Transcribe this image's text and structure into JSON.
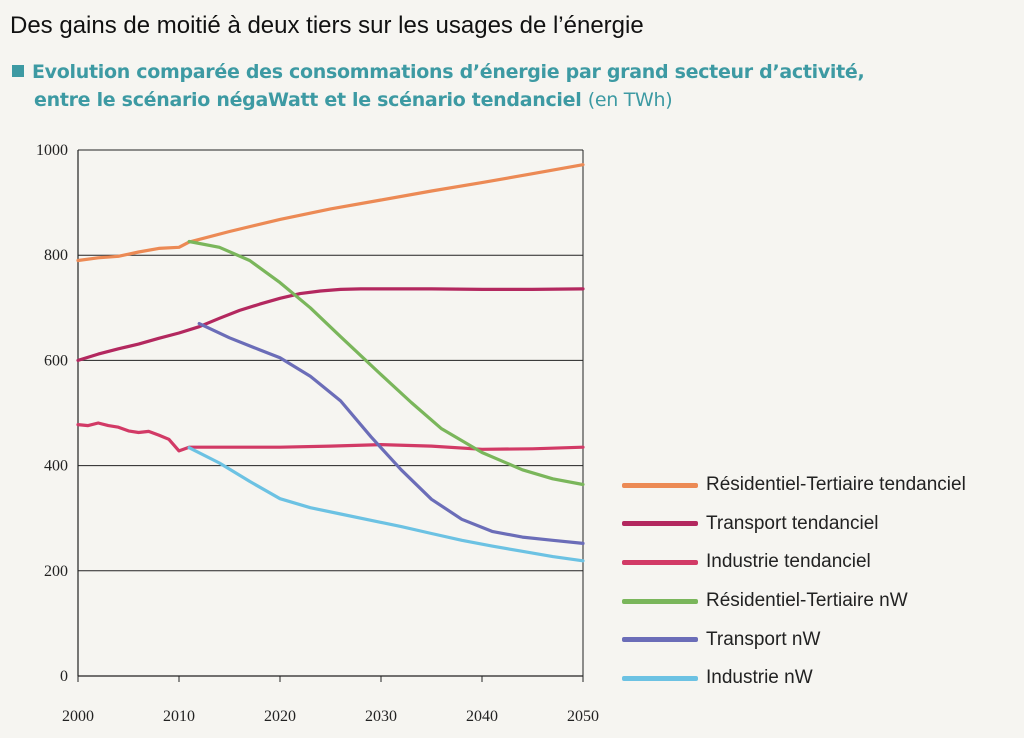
{
  "title": "Des gains de moitié à deux tiers sur les usages de l’énergie",
  "subtitle": {
    "line1": "Evolution comparée des consommations d’énergie par grand secteur d’activité,",
    "line2": "entre le scénario négaWatt et le scénario tendanciel",
    "unit": "(en TWh)"
  },
  "chart_data": {
    "type": "line",
    "title": "Des gains de moitié à deux tiers sur les usages de l’énergie",
    "subtitle": "Evolution comparée des consommations d’énergie par grand secteur d’activité, entre le scénario négaWatt et le scénario tendanciel (en TWh)",
    "xlabel": "",
    "ylabel": "",
    "xlim": [
      2000,
      2050
    ],
    "ylim": [
      0,
      1000
    ],
    "x_ticks": [
      2000,
      2010,
      2020,
      2030,
      2040,
      2050
    ],
    "y_ticks": [
      0,
      200,
      400,
      600,
      800,
      1000
    ],
    "grid": "horizontal",
    "legend_position": "bottom-right",
    "series": [
      {
        "name": "Résidentiel-Tertiaire tendanciel",
        "color": "#ec8a55",
        "points": [
          [
            2000,
            790
          ],
          [
            2002,
            795
          ],
          [
            2004,
            798
          ],
          [
            2006,
            806
          ],
          [
            2008,
            813
          ],
          [
            2010,
            815
          ],
          [
            2011,
            825
          ],
          [
            2015,
            845
          ],
          [
            2020,
            868
          ],
          [
            2025,
            888
          ],
          [
            2030,
            905
          ],
          [
            2035,
            922
          ],
          [
            2040,
            938
          ],
          [
            2045,
            955
          ],
          [
            2050,
            972
          ]
        ]
      },
      {
        "name": "Transport tendanciel",
        "color": "#b3285f",
        "points": [
          [
            2000,
            600
          ],
          [
            2002,
            612
          ],
          [
            2004,
            622
          ],
          [
            2006,
            631
          ],
          [
            2008,
            642
          ],
          [
            2010,
            652
          ],
          [
            2012,
            664
          ],
          [
            2014,
            680
          ],
          [
            2016,
            695
          ],
          [
            2018,
            707
          ],
          [
            2020,
            718
          ],
          [
            2022,
            727
          ],
          [
            2024,
            732
          ],
          [
            2026,
            735
          ],
          [
            2028,
            736
          ],
          [
            2030,
            736
          ],
          [
            2035,
            736
          ],
          [
            2040,
            735
          ],
          [
            2045,
            735
          ],
          [
            2050,
            736
          ]
        ]
      },
      {
        "name": "Industrie tendanciel",
        "color": "#d23a66",
        "points": [
          [
            2000,
            478
          ],
          [
            2001,
            476
          ],
          [
            2002,
            481
          ],
          [
            2003,
            476
          ],
          [
            2004,
            473
          ],
          [
            2005,
            466
          ],
          [
            2006,
            463
          ],
          [
            2007,
            465
          ],
          [
            2008,
            458
          ],
          [
            2009,
            450
          ],
          [
            2010,
            428
          ],
          [
            2011,
            435
          ],
          [
            2015,
            435
          ],
          [
            2020,
            435
          ],
          [
            2025,
            437
          ],
          [
            2030,
            440
          ],
          [
            2035,
            437
          ],
          [
            2040,
            431
          ],
          [
            2045,
            432
          ],
          [
            2050,
            435
          ]
        ]
      },
      {
        "name": "Résidentiel-Tertiaire nW",
        "color": "#7ab65b",
        "points": [
          [
            2011,
            826
          ],
          [
            2014,
            815
          ],
          [
            2017,
            790
          ],
          [
            2020,
            748
          ],
          [
            2023,
            700
          ],
          [
            2026,
            645
          ],
          [
            2030,
            573
          ],
          [
            2033,
            520
          ],
          [
            2036,
            470
          ],
          [
            2040,
            425
          ],
          [
            2044,
            392
          ],
          [
            2047,
            375
          ],
          [
            2050,
            364
          ]
        ]
      },
      {
        "name": "Transport nW",
        "color": "#6b6db8",
        "points": [
          [
            2012,
            670
          ],
          [
            2015,
            643
          ],
          [
            2018,
            620
          ],
          [
            2020,
            605
          ],
          [
            2023,
            570
          ],
          [
            2026,
            523
          ],
          [
            2029,
            455
          ],
          [
            2032,
            392
          ],
          [
            2035,
            336
          ],
          [
            2038,
            298
          ],
          [
            2041,
            275
          ],
          [
            2044,
            264
          ],
          [
            2047,
            258
          ],
          [
            2050,
            252
          ]
        ]
      },
      {
        "name": "Industrie nW",
        "color": "#6cc2e3",
        "points": [
          [
            2011,
            434
          ],
          [
            2014,
            405
          ],
          [
            2017,
            370
          ],
          [
            2020,
            337
          ],
          [
            2023,
            320
          ],
          [
            2026,
            308
          ],
          [
            2029,
            296
          ],
          [
            2032,
            284
          ],
          [
            2035,
            271
          ],
          [
            2038,
            258
          ],
          [
            2041,
            247
          ],
          [
            2044,
            237
          ],
          [
            2047,
            227
          ],
          [
            2050,
            219
          ]
        ]
      }
    ]
  }
}
